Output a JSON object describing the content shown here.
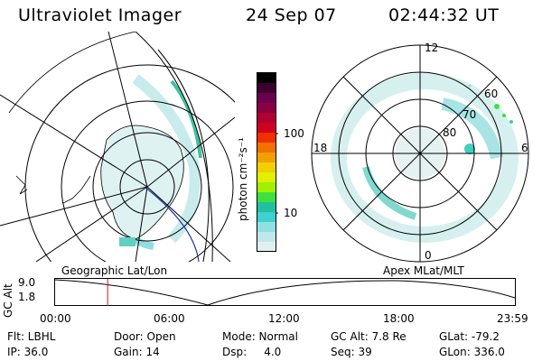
{
  "header": {
    "instrument": "Ultraviolet Imager",
    "date": "24 Sep 07",
    "time": "02:44:32 UT"
  },
  "colorbar": {
    "unit_label": "photon cm⁻²s⁻¹",
    "ticks": [
      "100",
      "10"
    ],
    "colors": [
      "#000000",
      "#3a0030",
      "#6a0050",
      "#8a0040",
      "#b00030",
      "#d00020",
      "#f03000",
      "#f07000",
      "#f0a000",
      "#f0d000",
      "#e0f000",
      "#a0f000",
      "#40e040",
      "#20c0a0",
      "#40d0d0",
      "#90e0e0",
      "#c0e8e8",
      "#e0f0f0"
    ]
  },
  "left_map": {
    "label": "Geographic Lat/Lon"
  },
  "right_map": {
    "label": "Apex MLat/MLT",
    "ring_labels": [
      "60",
      "70",
      "80"
    ],
    "mlt_labels": {
      "top": "12",
      "bottom": "0",
      "left": "18",
      "right": "6"
    }
  },
  "altitude_plot": {
    "ylabel": "GC Alt",
    "yticks": [
      "9.0",
      "1.8"
    ],
    "xticks": [
      "00:00",
      "06:00",
      "12:00",
      "18:00",
      "23:59"
    ],
    "marker_time": "02:44:32"
  },
  "status": {
    "row1": {
      "filter": "Flt: LBHL",
      "door": "Door: Open",
      "mode": "Mode: Normal",
      "gc_alt": "GC Alt: 7.8 Re",
      "glat": "GLat: -79.2"
    },
    "row2": {
      "ip": "IP: 36.0",
      "gain": "Gain: 14",
      "dsp": "Dsp:     4.0",
      "seq": "Seq: 39",
      "glon": "GLon: 336.0"
    }
  }
}
